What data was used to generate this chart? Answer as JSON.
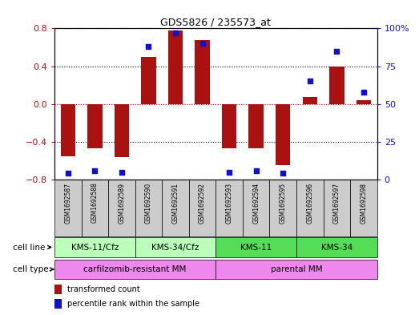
{
  "title": "GDS5826 / 235573_at",
  "samples": [
    "GSM1692587",
    "GSM1692588",
    "GSM1692589",
    "GSM1692590",
    "GSM1692591",
    "GSM1692592",
    "GSM1692593",
    "GSM1692594",
    "GSM1692595",
    "GSM1692596",
    "GSM1692597",
    "GSM1692598"
  ],
  "transformed_count": [
    -0.55,
    -0.47,
    -0.56,
    0.5,
    0.78,
    0.68,
    -0.47,
    -0.47,
    -0.65,
    0.07,
    0.4,
    0.04
  ],
  "percentile_rank": [
    4,
    6,
    5,
    88,
    97,
    90,
    5,
    6,
    4,
    65,
    85,
    58
  ],
  "bar_color": "#aa1111",
  "dot_color": "#1111cc",
  "bar_width": 0.55,
  "ylim_left": [
    -0.8,
    0.8
  ],
  "ylim_right": [
    0,
    100
  ],
  "yticks_left": [
    -0.8,
    -0.4,
    0.0,
    0.4,
    0.8
  ],
  "yticks_right": [
    0,
    25,
    50,
    75,
    100
  ],
  "ytick_labels_right": [
    "0",
    "25",
    "50",
    "75",
    "100%"
  ],
  "cell_line_groups": [
    {
      "label": "KMS-11/Cfz",
      "start": 0,
      "end": 2,
      "color": "#bbffbb"
    },
    {
      "label": "KMS-34/Cfz",
      "start": 3,
      "end": 5,
      "color": "#bbffbb"
    },
    {
      "label": "KMS-11",
      "start": 6,
      "end": 8,
      "color": "#55dd55"
    },
    {
      "label": "KMS-34",
      "start": 9,
      "end": 11,
      "color": "#55dd55"
    }
  ],
  "cell_type_groups": [
    {
      "label": "carfilzomib-resistant MM",
      "start": 0,
      "end": 5,
      "color": "#ee88ee"
    },
    {
      "label": "parental MM",
      "start": 6,
      "end": 11,
      "color": "#ee88ee"
    }
  ],
  "cell_line_label": "cell line",
  "cell_type_label": "cell type",
  "legend_bar_label": "transformed count",
  "legend_dot_label": "percentile rank within the sample",
  "bar_color_legend": "#aa1111",
  "dot_color_legend": "#1111cc",
  "header_bg_color": "#cccccc",
  "plot_bg_color": "#ffffff",
  "dotted_line_color": "#000000",
  "zero_line_color": "#cc0000"
}
